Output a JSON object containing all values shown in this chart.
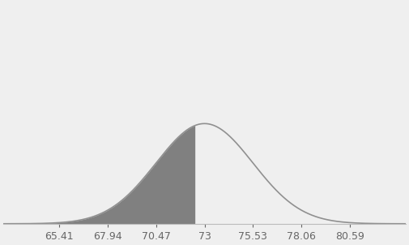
{
  "mean": 73,
  "std": 2.53,
  "shade_up_to": 72.5,
  "x_ticks": [
    65.41,
    67.94,
    70.47,
    73,
    75.53,
    78.06,
    80.59
  ],
  "x_min": 62.5,
  "x_max": 83.5,
  "curve_color": "#909090",
  "shade_color": "#808080",
  "background_color": "#efefef",
  "curve_linewidth": 1.2,
  "tick_fontsize": 9,
  "ylim_scale": 2.2
}
